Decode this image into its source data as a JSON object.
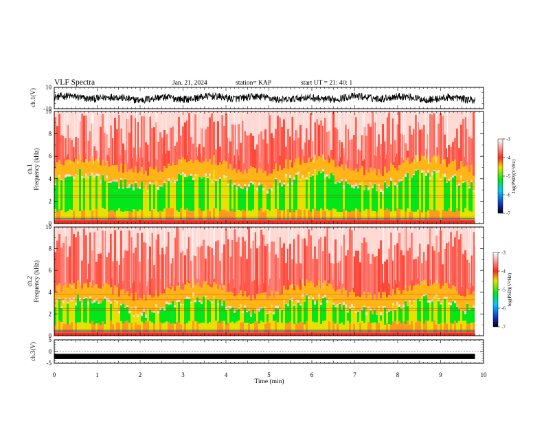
{
  "header": {
    "title": "VLF Spectra",
    "date": "Jan. 21, 2024",
    "station": "station= KAP",
    "start": "start UT =  21: 40: 1"
  },
  "chart_data": [
    {
      "id": "ch1-waveform",
      "type": "line",
      "ylabel": "ch.1(V)",
      "ylim": [
        -10,
        10
      ],
      "yticks": [
        "10",
        "-10"
      ],
      "xlim": [
        0,
        10
      ],
      "data_end_min": 9.8,
      "description_of_values": "noisy time series oscillating roughly between -5 and +5 V"
    },
    {
      "id": "ch1-spectrogram",
      "type": "heatmap",
      "ylabel": "ch.1\nFrequency (kHz)",
      "ylim": [
        0,
        10
      ],
      "yticks": [
        "0",
        "2",
        "4",
        "6",
        "8",
        "10"
      ],
      "xlim": [
        0,
        10
      ],
      "data_end_min": 9.8,
      "colorbar": {
        "label": "log(PSD)(V²/Hz)",
        "range": [
          -7,
          -3
        ],
        "ticks": [
          "-3",
          "-4",
          "-5",
          "-6",
          "-7"
        ]
      },
      "band_edge_khz": 4.8
    },
    {
      "id": "ch2-spectrogram",
      "type": "heatmap",
      "ylabel": "ch.2\nFrequency (kHz)",
      "ylim": [
        0,
        10
      ],
      "yticks": [
        "0",
        "2",
        "4",
        "6",
        "8",
        "10"
      ],
      "xlim": [
        0,
        10
      ],
      "data_end_min": 9.8,
      "colorbar": {
        "label": "log(PSD)(V²/Hz)",
        "range": [
          -7,
          -3
        ],
        "ticks": [
          "-3",
          "-4",
          "-5",
          "-6",
          "-7"
        ]
      },
      "band_edge_khz": 3.8
    },
    {
      "id": "ch3-waveform",
      "type": "line",
      "ylabel": "ch.3(V)",
      "ylim": [
        -5,
        5
      ],
      "yticks": [
        "5",
        "0",
        "-5"
      ],
      "xlim": [
        0,
        10
      ],
      "data_end_min": 9.8,
      "xlabel": "Time (min)",
      "xticks": [
        "0",
        "1",
        "2",
        "3",
        "4",
        "5",
        "6",
        "7",
        "8",
        "9",
        "10"
      ],
      "description_of_values": "dense oscillation centred near -2 V"
    }
  ],
  "colors": {
    "red": "#ff2a1e",
    "yellow": "#e8e000",
    "green": "#00e81a",
    "blue": "#1030c8",
    "black": "#000000"
  }
}
